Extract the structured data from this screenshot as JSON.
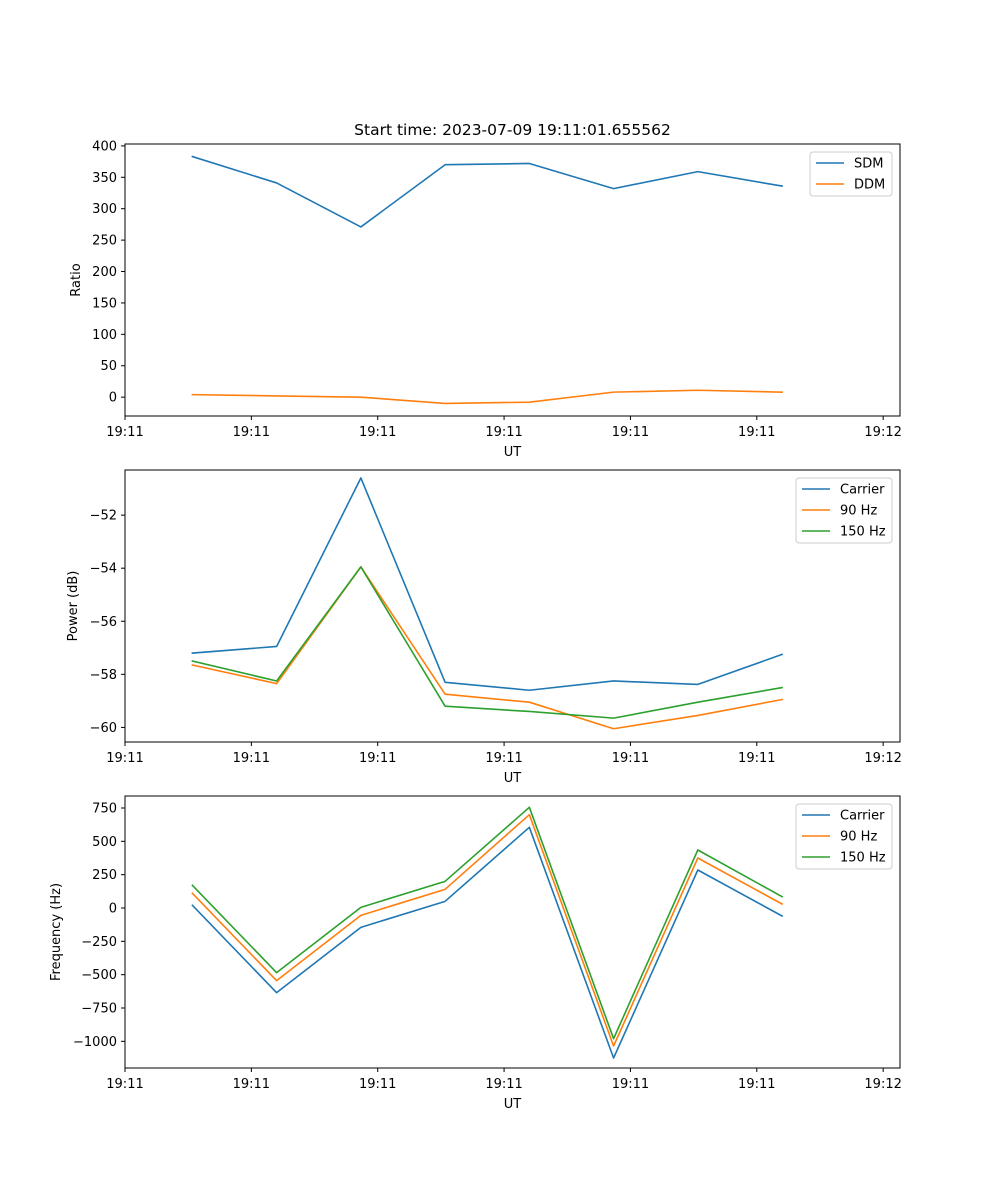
{
  "figure": {
    "title": "Start time: 2023-07-09 19:11:01.655562"
  },
  "colors": {
    "series1": "#1f77b4",
    "series2": "#ff7f0e",
    "series3": "#2ca02c",
    "axes": "#000000",
    "legend_border": "#cccccc"
  },
  "chart_data": [
    {
      "type": "line",
      "title": "Start time: 2023-07-09 19:11:01.655562",
      "xlabel": "UT",
      "ylabel": "Ratio",
      "x": [
        1,
        2,
        3,
        4,
        5,
        6,
        7,
        8
      ],
      "xlim": [
        0.2,
        9.4
      ],
      "xticks": [
        0.2,
        1.7,
        3.2,
        4.7,
        6.2,
        7.7,
        9.2
      ],
      "xtick_labels": [
        "19:11",
        "19:11",
        "19:11",
        "19:11",
        "19:11",
        "19:11",
        "19:12"
      ],
      "ylim": [
        -30,
        403
      ],
      "yticks": [
        0,
        50,
        100,
        150,
        200,
        250,
        300,
        350,
        400
      ],
      "ytick_labels": [
        "0",
        "50",
        "100",
        "150",
        "200",
        "250",
        "300",
        "350",
        "400"
      ],
      "legend_position": "upper-right",
      "series": [
        {
          "name": "SDM",
          "values": [
            383,
            341,
            271,
            370,
            372,
            332,
            359,
            336
          ]
        },
        {
          "name": "DDM",
          "values": [
            4,
            2,
            0,
            -10,
            -8,
            8,
            11,
            8
          ]
        }
      ]
    },
    {
      "type": "line",
      "title": "",
      "xlabel": "UT",
      "ylabel": "Power (dB)",
      "x": [
        1,
        2,
        3,
        4,
        5,
        6,
        7,
        8
      ],
      "xlim": [
        0.2,
        9.4
      ],
      "xticks": [
        0.2,
        1.7,
        3.2,
        4.7,
        6.2,
        7.7,
        9.2
      ],
      "xtick_labels": [
        "19:11",
        "19:11",
        "19:11",
        "19:11",
        "19:11",
        "19:11",
        "19:12"
      ],
      "ylim": [
        -60.55,
        -50.3
      ],
      "yticks": [
        -60,
        -58,
        -56,
        -54,
        -52
      ],
      "ytick_labels": [
        "−60",
        "−58",
        "−56",
        "−54",
        "−52"
      ],
      "legend_position": "upper-right",
      "series": [
        {
          "name": "Carrier",
          "values": [
            -57.2,
            -56.95,
            -50.6,
            -58.3,
            -58.6,
            -58.25,
            -58.38,
            -57.25
          ]
        },
        {
          "name": "90 Hz",
          "values": [
            -57.65,
            -58.35,
            -53.95,
            -58.75,
            -59.05,
            -60.05,
            -59.55,
            -58.95
          ]
        },
        {
          "name": "150 Hz",
          "values": [
            -57.5,
            -58.25,
            -53.95,
            -59.2,
            -59.4,
            -59.65,
            -59.05,
            -58.5
          ]
        }
      ]
    },
    {
      "type": "line",
      "title": "",
      "xlabel": "UT",
      "ylabel": "Frequency (Hz)",
      "x": [
        1,
        2,
        3,
        4,
        5,
        6,
        7,
        8
      ],
      "xlim": [
        0.2,
        9.4
      ],
      "xticks": [
        0.2,
        1.7,
        3.2,
        4.7,
        6.2,
        7.7,
        9.2
      ],
      "xtick_labels": [
        "19:11",
        "19:11",
        "19:11",
        "19:11",
        "19:11",
        "19:11",
        "19:12"
      ],
      "ylim": [
        -1200,
        840
      ],
      "yticks": [
        -1000,
        -750,
        -500,
        -250,
        0,
        250,
        500,
        750
      ],
      "ytick_labels": [
        "−1000",
        "−750",
        "−500",
        "−250",
        "0",
        "250",
        "500",
        "750"
      ],
      "legend_position": "upper-right",
      "series": [
        {
          "name": "Carrier",
          "values": [
            20,
            -635,
            -145,
            50,
            605,
            -1125,
            285,
            -60
          ]
        },
        {
          "name": "90 Hz",
          "values": [
            110,
            -545,
            -55,
            140,
            700,
            -1035,
            375,
            30
          ]
        },
        {
          "name": "150 Hz",
          "values": [
            170,
            -485,
            5,
            200,
            755,
            -980,
            435,
            85
          ]
        }
      ]
    }
  ]
}
